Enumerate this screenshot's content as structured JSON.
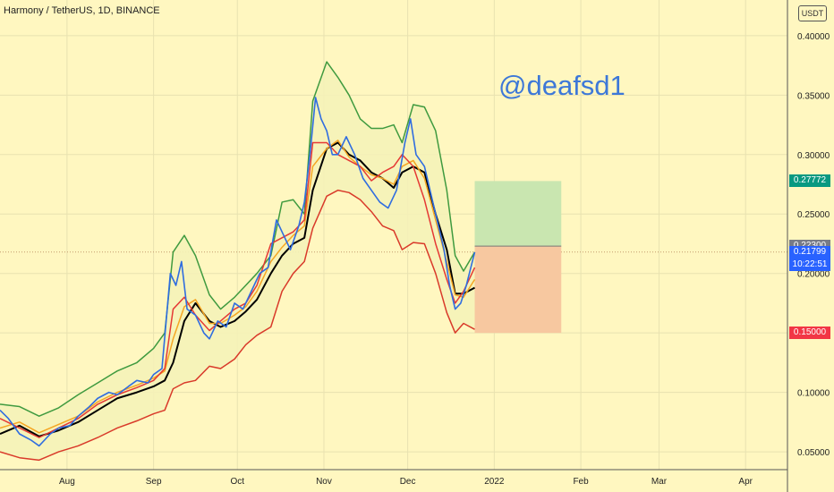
{
  "header": {
    "title": "Harmony / TetherUS, 1D, BINANCE",
    "unit": "USDT"
  },
  "watermark": "@deafsd1",
  "colors": {
    "background": "#fff7c0",
    "upper_band": "#3f9a3f",
    "lower_band": "#d93a2a",
    "basis": "#000000",
    "price": "#2f6de0",
    "fast_ma": "#e53935",
    "slow_ma": "#f5a623",
    "band_fill": "#f5f2b8",
    "profit_zone": "#c9e6b0",
    "loss_zone": "#f7c8a0"
  },
  "price_labels": {
    "target": {
      "value": "0.27772",
      "color": "#089981"
    },
    "entry": {
      "value": "0.22300",
      "color": "#787b86"
    },
    "current": {
      "value": "0.21799",
      "countdown": "10:22:51",
      "color": "#2962ff"
    },
    "stop": {
      "value": "0.15000",
      "color": "#f23645"
    }
  },
  "chart_data": {
    "type": "line",
    "title": "Harmony / TetherUS, 1D, BINANCE",
    "x_tick_labels": [
      "Aug",
      "Sep",
      "Oct",
      "Nov",
      "Dec",
      "2022",
      "Feb",
      "Mar",
      "Apr"
    ],
    "x_tick_dates": [
      "2021-08-01",
      "2021-09-01",
      "2021-10-01",
      "2021-11-01",
      "2021-12-01",
      "2022-01-01",
      "2022-02-01",
      "2022-03-01",
      "2022-04-01"
    ],
    "y_ticks": [
      0.05,
      0.1,
      0.15,
      0.2,
      0.25,
      0.3,
      0.35,
      0.4
    ],
    "y_tick_labels": [
      "0.05000",
      "0.10000",
      "0.15000",
      "0.20000",
      "0.25000",
      "0.30000",
      "0.35000",
      "0.40000"
    ],
    "ylim": [
      0.035,
      0.43
    ],
    "xlim": [
      "2021-07-08",
      "2022-04-16"
    ],
    "series": [
      {
        "key": "upper",
        "color": "#3f9a3f",
        "points": [
          [
            "2021-07-08",
            0.09
          ],
          [
            "2021-07-15",
            0.088
          ],
          [
            "2021-07-22",
            0.08
          ],
          [
            "2021-07-29",
            0.087
          ],
          [
            "2021-08-05",
            0.098
          ],
          [
            "2021-08-12",
            0.108
          ],
          [
            "2021-08-19",
            0.118
          ],
          [
            "2021-08-26",
            0.125
          ],
          [
            "2021-09-01",
            0.137
          ],
          [
            "2021-09-05",
            0.15
          ],
          [
            "2021-09-08",
            0.218
          ],
          [
            "2021-09-12",
            0.232
          ],
          [
            "2021-09-16",
            0.215
          ],
          [
            "2021-09-21",
            0.182
          ],
          [
            "2021-09-25",
            0.17
          ],
          [
            "2021-09-30",
            0.18
          ],
          [
            "2021-10-04",
            0.19
          ],
          [
            "2021-10-08",
            0.2
          ],
          [
            "2021-10-13",
            0.215
          ],
          [
            "2021-10-17",
            0.26
          ],
          [
            "2021-10-21",
            0.262
          ],
          [
            "2021-10-25",
            0.25
          ],
          [
            "2021-10-28",
            0.345
          ],
          [
            "2021-11-02",
            0.378
          ],
          [
            "2021-11-06",
            0.365
          ],
          [
            "2021-11-10",
            0.35
          ],
          [
            "2021-11-14",
            0.33
          ],
          [
            "2021-11-18",
            0.322
          ],
          [
            "2021-11-22",
            0.322
          ],
          [
            "2021-11-26",
            0.325
          ],
          [
            "2021-11-29",
            0.31
          ],
          [
            "2021-12-03",
            0.342
          ],
          [
            "2021-12-07",
            0.34
          ],
          [
            "2021-12-11",
            0.32
          ],
          [
            "2021-12-15",
            0.27
          ],
          [
            "2021-12-18",
            0.215
          ],
          [
            "2021-12-21",
            0.202
          ],
          [
            "2021-12-25",
            0.218
          ]
        ]
      },
      {
        "key": "lower",
        "color": "#d93a2a",
        "points": [
          [
            "2021-07-08",
            0.05
          ],
          [
            "2021-07-15",
            0.045
          ],
          [
            "2021-07-22",
            0.043
          ],
          [
            "2021-07-29",
            0.05
          ],
          [
            "2021-08-05",
            0.055
          ],
          [
            "2021-08-12",
            0.062
          ],
          [
            "2021-08-19",
            0.07
          ],
          [
            "2021-08-26",
            0.076
          ],
          [
            "2021-09-01",
            0.082
          ],
          [
            "2021-09-05",
            0.085
          ],
          [
            "2021-09-08",
            0.103
          ],
          [
            "2021-09-12",
            0.108
          ],
          [
            "2021-09-16",
            0.11
          ],
          [
            "2021-09-21",
            0.122
          ],
          [
            "2021-09-25",
            0.12
          ],
          [
            "2021-09-30",
            0.128
          ],
          [
            "2021-10-04",
            0.14
          ],
          [
            "2021-10-08",
            0.148
          ],
          [
            "2021-10-13",
            0.155
          ],
          [
            "2021-10-17",
            0.185
          ],
          [
            "2021-10-21",
            0.2
          ],
          [
            "2021-10-25",
            0.21
          ],
          [
            "2021-10-28",
            0.238
          ],
          [
            "2021-11-02",
            0.265
          ],
          [
            "2021-11-06",
            0.27
          ],
          [
            "2021-11-10",
            0.268
          ],
          [
            "2021-11-14",
            0.262
          ],
          [
            "2021-11-18",
            0.252
          ],
          [
            "2021-11-22",
            0.24
          ],
          [
            "2021-11-26",
            0.236
          ],
          [
            "2021-11-29",
            0.22
          ],
          [
            "2021-12-03",
            0.226
          ],
          [
            "2021-12-07",
            0.225
          ],
          [
            "2021-12-11",
            0.2
          ],
          [
            "2021-12-15",
            0.167
          ],
          [
            "2021-12-18",
            0.15
          ],
          [
            "2021-12-21",
            0.158
          ],
          [
            "2021-12-25",
            0.153
          ]
        ]
      },
      {
        "key": "basis",
        "color": "#000000",
        "points": [
          [
            "2021-07-08",
            0.065
          ],
          [
            "2021-07-15",
            0.072
          ],
          [
            "2021-07-22",
            0.063
          ],
          [
            "2021-07-29",
            0.068
          ],
          [
            "2021-08-05",
            0.075
          ],
          [
            "2021-08-12",
            0.085
          ],
          [
            "2021-08-19",
            0.095
          ],
          [
            "2021-08-26",
            0.1
          ],
          [
            "2021-09-01",
            0.105
          ],
          [
            "2021-09-05",
            0.11
          ],
          [
            "2021-09-08",
            0.125
          ],
          [
            "2021-09-12",
            0.16
          ],
          [
            "2021-09-16",
            0.175
          ],
          [
            "2021-09-21",
            0.16
          ],
          [
            "2021-09-25",
            0.155
          ],
          [
            "2021-09-30",
            0.16
          ],
          [
            "2021-10-04",
            0.168
          ],
          [
            "2021-10-08",
            0.178
          ],
          [
            "2021-10-13",
            0.2
          ],
          [
            "2021-10-17",
            0.215
          ],
          [
            "2021-10-21",
            0.225
          ],
          [
            "2021-10-25",
            0.23
          ],
          [
            "2021-10-28",
            0.27
          ],
          [
            "2021-11-02",
            0.305
          ],
          [
            "2021-11-06",
            0.31
          ],
          [
            "2021-11-10",
            0.3
          ],
          [
            "2021-11-14",
            0.295
          ],
          [
            "2021-11-18",
            0.285
          ],
          [
            "2021-11-22",
            0.28
          ],
          [
            "2021-11-26",
            0.272
          ],
          [
            "2021-11-29",
            0.285
          ],
          [
            "2021-12-03",
            0.29
          ],
          [
            "2021-12-07",
            0.285
          ],
          [
            "2021-12-11",
            0.25
          ],
          [
            "2021-12-15",
            0.22
          ],
          [
            "2021-12-18",
            0.183
          ],
          [
            "2021-12-21",
            0.183
          ],
          [
            "2021-12-25",
            0.188
          ]
        ]
      },
      {
        "key": "slow_ma",
        "color": "#f5a623",
        "points": [
          [
            "2021-07-08",
            0.07
          ],
          [
            "2021-07-15",
            0.075
          ],
          [
            "2021-07-22",
            0.066
          ],
          [
            "2021-07-29",
            0.073
          ],
          [
            "2021-08-05",
            0.08
          ],
          [
            "2021-08-12",
            0.092
          ],
          [
            "2021-08-19",
            0.1
          ],
          [
            "2021-08-26",
            0.106
          ],
          [
            "2021-09-01",
            0.112
          ],
          [
            "2021-09-05",
            0.118
          ],
          [
            "2021-09-08",
            0.145
          ],
          [
            "2021-09-12",
            0.172
          ],
          [
            "2021-09-16",
            0.178
          ],
          [
            "2021-09-21",
            0.158
          ],
          [
            "2021-09-25",
            0.158
          ],
          [
            "2021-09-30",
            0.165
          ],
          [
            "2021-10-04",
            0.172
          ],
          [
            "2021-10-08",
            0.185
          ],
          [
            "2021-10-13",
            0.21
          ],
          [
            "2021-10-17",
            0.222
          ],
          [
            "2021-10-21",
            0.232
          ],
          [
            "2021-10-25",
            0.24
          ],
          [
            "2021-10-28",
            0.29
          ],
          [
            "2021-11-02",
            0.305
          ],
          [
            "2021-11-06",
            0.312
          ],
          [
            "2021-11-10",
            0.298
          ],
          [
            "2021-11-14",
            0.29
          ],
          [
            "2021-11-18",
            0.283
          ],
          [
            "2021-11-22",
            0.28
          ],
          [
            "2021-11-26",
            0.275
          ],
          [
            "2021-11-29",
            0.29
          ],
          [
            "2021-12-03",
            0.295
          ],
          [
            "2021-12-07",
            0.28
          ],
          [
            "2021-12-11",
            0.245
          ],
          [
            "2021-12-15",
            0.21
          ],
          [
            "2021-12-18",
            0.182
          ],
          [
            "2021-12-21",
            0.18
          ],
          [
            "2021-12-25",
            0.195
          ]
        ]
      },
      {
        "key": "fast_ma",
        "color": "#e53935",
        "points": [
          [
            "2021-07-08",
            0.078
          ],
          [
            "2021-07-15",
            0.07
          ],
          [
            "2021-07-22",
            0.062
          ],
          [
            "2021-07-29",
            0.07
          ],
          [
            "2021-08-05",
            0.078
          ],
          [
            "2021-08-12",
            0.09
          ],
          [
            "2021-08-19",
            0.098
          ],
          [
            "2021-08-26",
            0.104
          ],
          [
            "2021-09-01",
            0.11
          ],
          [
            "2021-09-05",
            0.12
          ],
          [
            "2021-09-08",
            0.17
          ],
          [
            "2021-09-12",
            0.18
          ],
          [
            "2021-09-16",
            0.165
          ],
          [
            "2021-09-21",
            0.152
          ],
          [
            "2021-09-25",
            0.16
          ],
          [
            "2021-09-30",
            0.17
          ],
          [
            "2021-10-04",
            0.175
          ],
          [
            "2021-10-08",
            0.19
          ],
          [
            "2021-10-13",
            0.225
          ],
          [
            "2021-10-17",
            0.23
          ],
          [
            "2021-10-21",
            0.235
          ],
          [
            "2021-10-25",
            0.245
          ],
          [
            "2021-10-28",
            0.31
          ],
          [
            "2021-11-02",
            0.31
          ],
          [
            "2021-11-06",
            0.3
          ],
          [
            "2021-11-10",
            0.295
          ],
          [
            "2021-11-14",
            0.29
          ],
          [
            "2021-11-18",
            0.278
          ],
          [
            "2021-11-22",
            0.285
          ],
          [
            "2021-11-26",
            0.29
          ],
          [
            "2021-11-29",
            0.3
          ],
          [
            "2021-12-03",
            0.29
          ],
          [
            "2021-12-07",
            0.262
          ],
          [
            "2021-12-11",
            0.225
          ],
          [
            "2021-12-15",
            0.195
          ],
          [
            "2021-12-18",
            0.175
          ],
          [
            "2021-12-21",
            0.185
          ],
          [
            "2021-12-25",
            0.205
          ]
        ]
      },
      {
        "key": "price",
        "color": "#2f6de0",
        "points": [
          [
            "2021-07-08",
            0.085
          ],
          [
            "2021-07-11",
            0.078
          ],
          [
            "2021-07-15",
            0.065
          ],
          [
            "2021-07-19",
            0.06
          ],
          [
            "2021-07-22",
            0.055
          ],
          [
            "2021-07-26",
            0.065
          ],
          [
            "2021-07-29",
            0.07
          ],
          [
            "2021-08-02",
            0.072
          ],
          [
            "2021-08-05",
            0.08
          ],
          [
            "2021-08-09",
            0.088
          ],
          [
            "2021-08-12",
            0.095
          ],
          [
            "2021-08-16",
            0.1
          ],
          [
            "2021-08-19",
            0.098
          ],
          [
            "2021-08-23",
            0.105
          ],
          [
            "2021-08-26",
            0.11
          ],
          [
            "2021-08-30",
            0.108
          ],
          [
            "2021-09-01",
            0.115
          ],
          [
            "2021-09-04",
            0.12
          ],
          [
            "2021-09-07",
            0.2
          ],
          [
            "2021-09-09",
            0.19
          ],
          [
            "2021-09-11",
            0.21
          ],
          [
            "2021-09-13",
            0.17
          ],
          [
            "2021-09-16",
            0.165
          ],
          [
            "2021-09-19",
            0.15
          ],
          [
            "2021-09-21",
            0.145
          ],
          [
            "2021-09-24",
            0.16
          ],
          [
            "2021-09-27",
            0.155
          ],
          [
            "2021-09-30",
            0.175
          ],
          [
            "2021-10-03",
            0.17
          ],
          [
            "2021-10-06",
            0.185
          ],
          [
            "2021-10-09",
            0.2
          ],
          [
            "2021-10-12",
            0.205
          ],
          [
            "2021-10-15",
            0.245
          ],
          [
            "2021-10-17",
            0.235
          ],
          [
            "2021-10-20",
            0.22
          ],
          [
            "2021-10-23",
            0.24
          ],
          [
            "2021-10-25",
            0.26
          ],
          [
            "2021-10-27",
            0.3
          ],
          [
            "2021-10-29",
            0.348
          ],
          [
            "2021-10-31",
            0.33
          ],
          [
            "2021-11-02",
            0.32
          ],
          [
            "2021-11-04",
            0.3
          ],
          [
            "2021-11-06",
            0.3
          ],
          [
            "2021-11-09",
            0.315
          ],
          [
            "2021-11-12",
            0.3
          ],
          [
            "2021-11-15",
            0.28
          ],
          [
            "2021-11-18",
            0.27
          ],
          [
            "2021-11-21",
            0.26
          ],
          [
            "2021-11-24",
            0.255
          ],
          [
            "2021-11-27",
            0.27
          ],
          [
            "2021-11-30",
            0.31
          ],
          [
            "2021-12-02",
            0.33
          ],
          [
            "2021-12-04",
            0.3
          ],
          [
            "2021-12-07",
            0.29
          ],
          [
            "2021-12-09",
            0.27
          ],
          [
            "2021-12-12",
            0.24
          ],
          [
            "2021-12-14",
            0.22
          ],
          [
            "2021-12-16",
            0.19
          ],
          [
            "2021-12-18",
            0.17
          ],
          [
            "2021-12-20",
            0.175
          ],
          [
            "2021-12-22",
            0.19
          ],
          [
            "2021-12-25",
            0.2179
          ]
        ]
      }
    ],
    "position": {
      "start": "2021-12-25",
      "end": "2022-01-25",
      "entry": 0.223,
      "target": 0.27772,
      "stop": 0.15
    },
    "current_price": 0.21799
  }
}
